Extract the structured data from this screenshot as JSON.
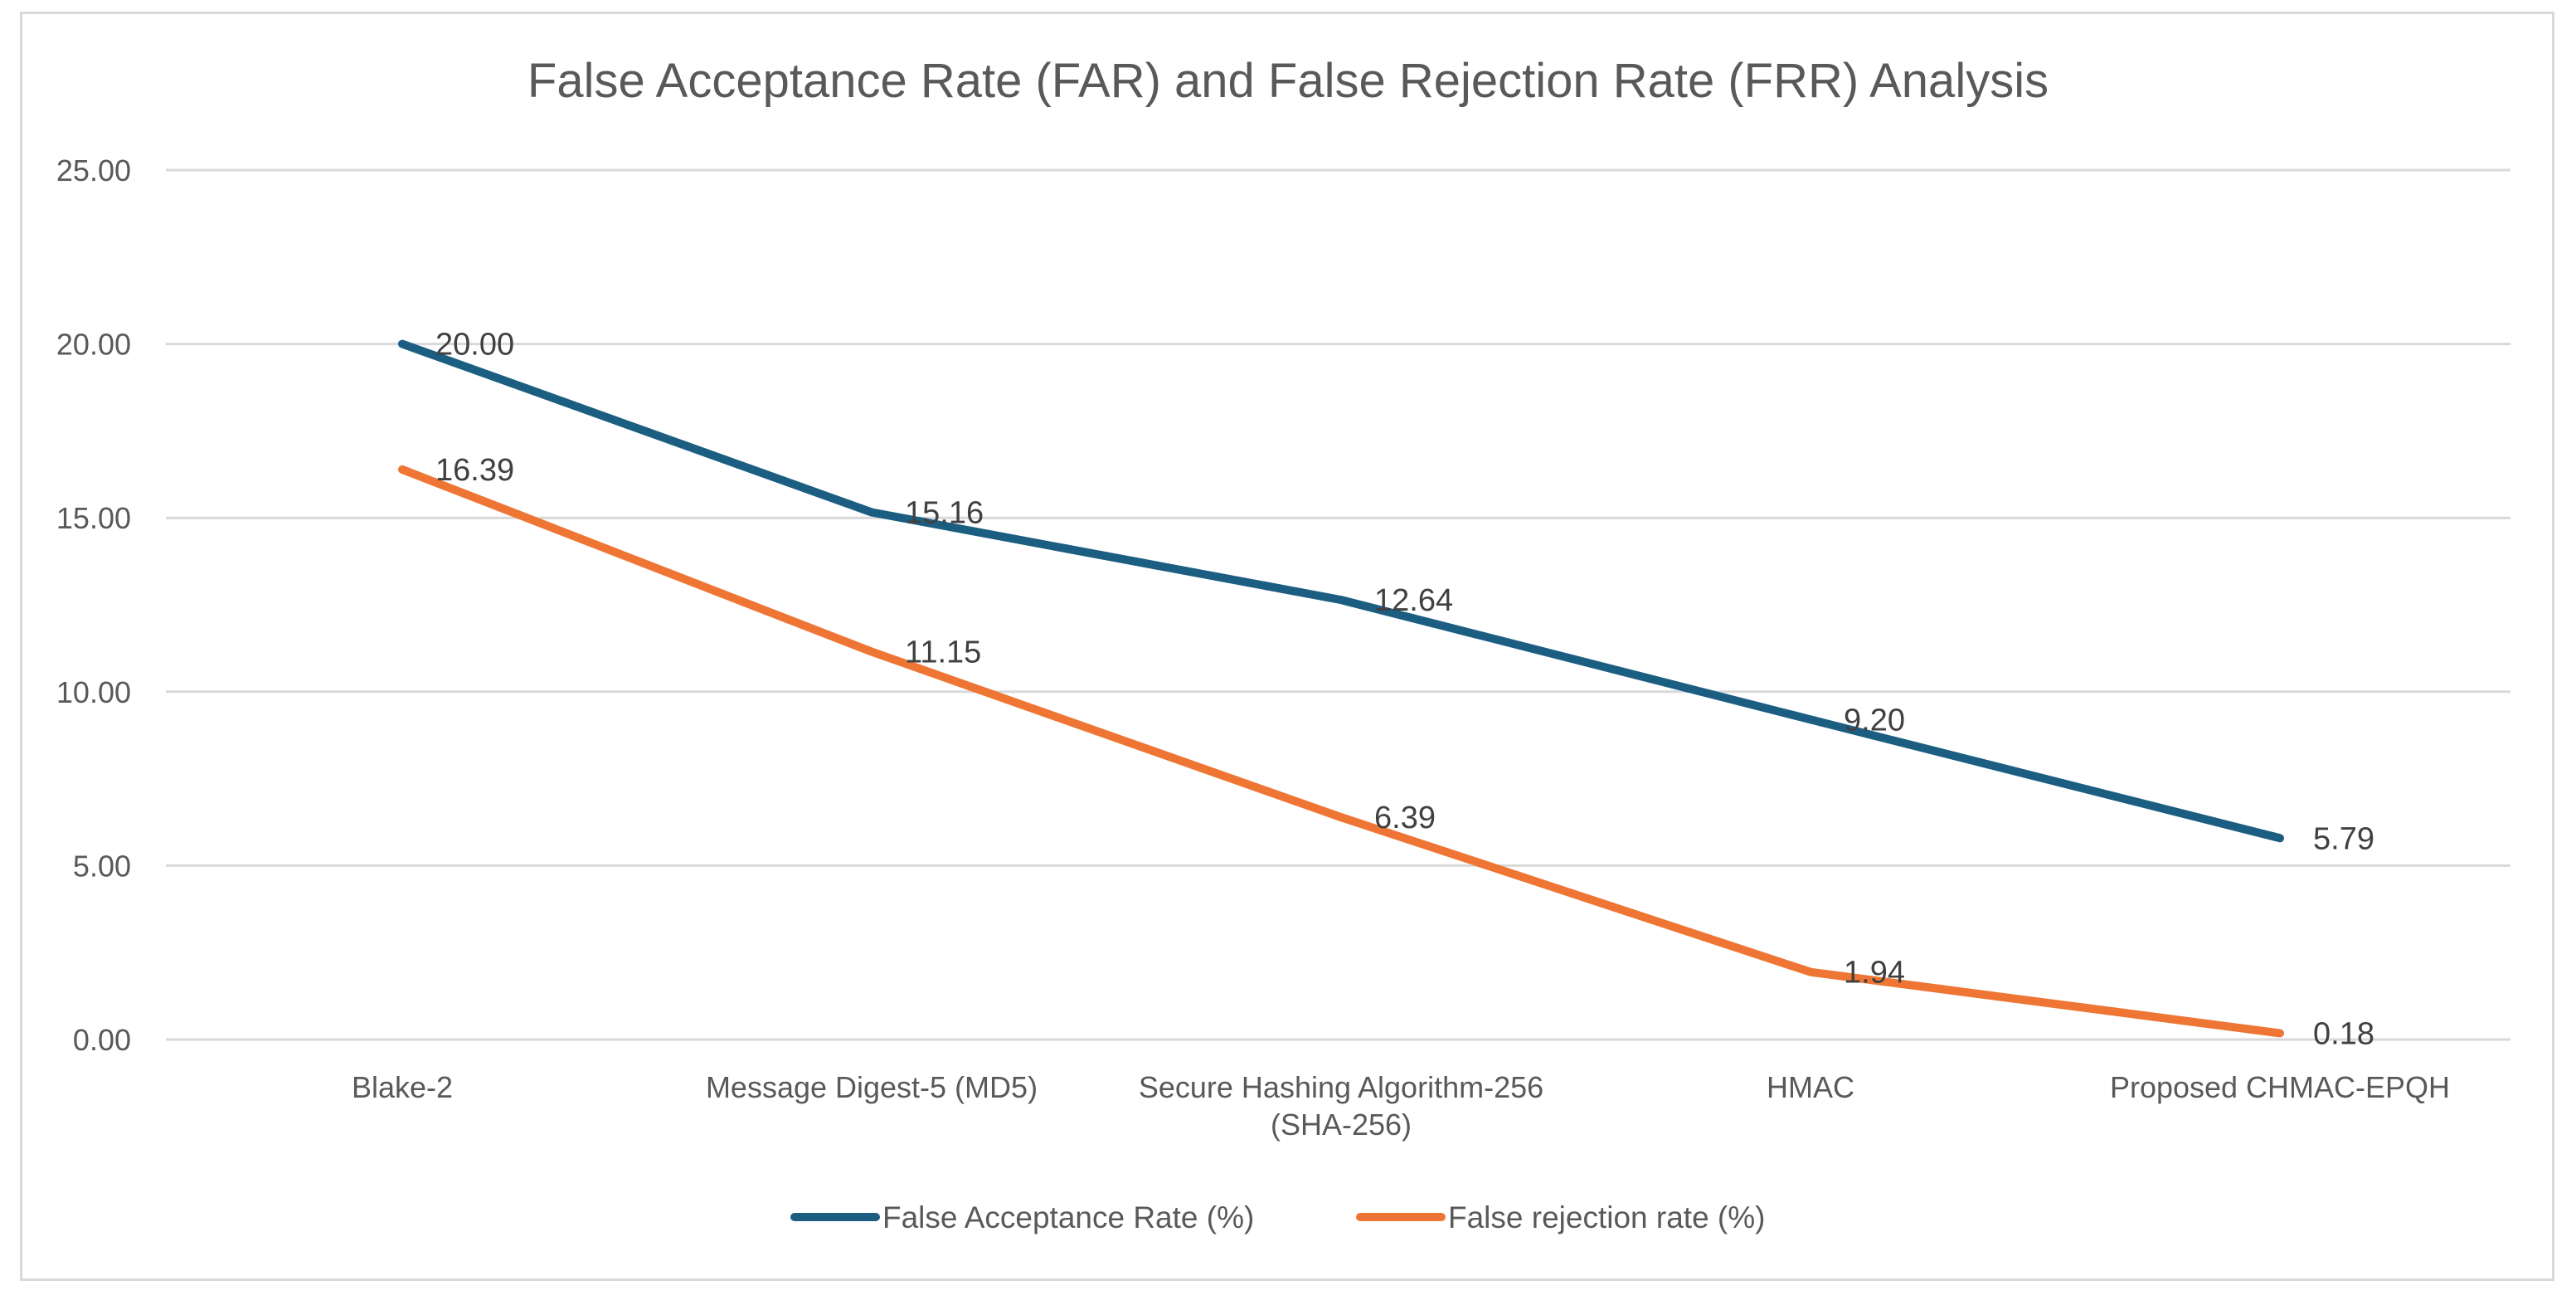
{
  "chart_data": {
    "type": "line",
    "title": "False Acceptance Rate (FAR) and False Rejection Rate (FRR) Analysis",
    "categories": [
      [
        "Blake-2"
      ],
      [
        "Message Digest-5 (MD5)"
      ],
      [
        "Secure Hashing Algorithm-256",
        "(SHA-256)"
      ],
      [
        "HMAC"
      ],
      [
        "Proposed CHMAC-EPQH"
      ]
    ],
    "ylim": [
      0,
      25
    ],
    "yticks": [
      "0.00",
      "5.00",
      "10.00",
      "15.00",
      "20.00",
      "25.00"
    ],
    "grid": true,
    "legend_position": "bottom",
    "series": [
      {
        "name": "False Acceptance Rate (%)",
        "color": "#1b5e82",
        "values": [
          20.0,
          15.16,
          12.64,
          9.2,
          5.79
        ],
        "labels": [
          "20.00",
          "15.16",
          "12.64",
          "9.20",
          "5.79"
        ]
      },
      {
        "name": "False rejection rate (%)",
        "color": "#ee7533",
        "values": [
          16.39,
          11.15,
          6.39,
          1.94,
          0.18
        ],
        "labels": [
          "16.39",
          "11.15",
          "6.39",
          "1.94",
          "0.18"
        ]
      }
    ]
  }
}
